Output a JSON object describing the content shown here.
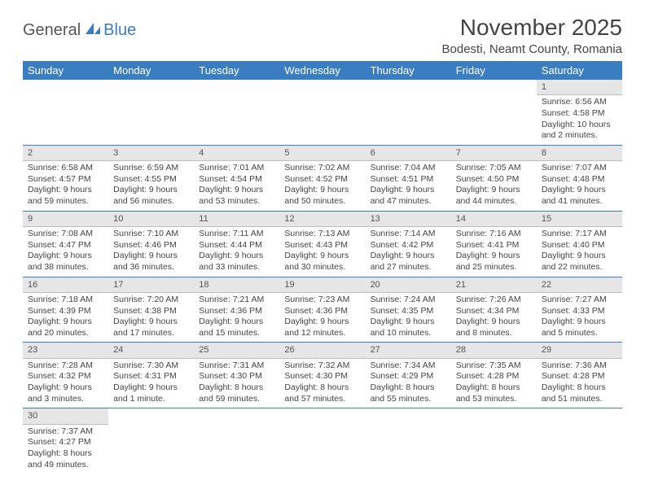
{
  "logo": {
    "part1": "General",
    "part2": "Blue"
  },
  "title": "November 2025",
  "location": "Bodesti, Neamt County, Romania",
  "colors": {
    "header_bg": "#3a7ec1",
    "header_text": "#ffffff",
    "daynum_bg": "#e6e6e6",
    "row_divider": "#3a7ec1",
    "text": "#444444"
  },
  "day_headers": [
    "Sunday",
    "Monday",
    "Tuesday",
    "Wednesday",
    "Thursday",
    "Friday",
    "Saturday"
  ],
  "weeks": [
    [
      {
        "n": "",
        "sr": "",
        "ss": "",
        "dl": ""
      },
      {
        "n": "",
        "sr": "",
        "ss": "",
        "dl": ""
      },
      {
        "n": "",
        "sr": "",
        "ss": "",
        "dl": ""
      },
      {
        "n": "",
        "sr": "",
        "ss": "",
        "dl": ""
      },
      {
        "n": "",
        "sr": "",
        "ss": "",
        "dl": ""
      },
      {
        "n": "",
        "sr": "",
        "ss": "",
        "dl": ""
      },
      {
        "n": "1",
        "sr": "Sunrise: 6:56 AM",
        "ss": "Sunset: 4:58 PM",
        "dl": "Daylight: 10 hours and 2 minutes."
      }
    ],
    [
      {
        "n": "2",
        "sr": "Sunrise: 6:58 AM",
        "ss": "Sunset: 4:57 PM",
        "dl": "Daylight: 9 hours and 59 minutes."
      },
      {
        "n": "3",
        "sr": "Sunrise: 6:59 AM",
        "ss": "Sunset: 4:55 PM",
        "dl": "Daylight: 9 hours and 56 minutes."
      },
      {
        "n": "4",
        "sr": "Sunrise: 7:01 AM",
        "ss": "Sunset: 4:54 PM",
        "dl": "Daylight: 9 hours and 53 minutes."
      },
      {
        "n": "5",
        "sr": "Sunrise: 7:02 AM",
        "ss": "Sunset: 4:52 PM",
        "dl": "Daylight: 9 hours and 50 minutes."
      },
      {
        "n": "6",
        "sr": "Sunrise: 7:04 AM",
        "ss": "Sunset: 4:51 PM",
        "dl": "Daylight: 9 hours and 47 minutes."
      },
      {
        "n": "7",
        "sr": "Sunrise: 7:05 AM",
        "ss": "Sunset: 4:50 PM",
        "dl": "Daylight: 9 hours and 44 minutes."
      },
      {
        "n": "8",
        "sr": "Sunrise: 7:07 AM",
        "ss": "Sunset: 4:48 PM",
        "dl": "Daylight: 9 hours and 41 minutes."
      }
    ],
    [
      {
        "n": "9",
        "sr": "Sunrise: 7:08 AM",
        "ss": "Sunset: 4:47 PM",
        "dl": "Daylight: 9 hours and 38 minutes."
      },
      {
        "n": "10",
        "sr": "Sunrise: 7:10 AM",
        "ss": "Sunset: 4:46 PM",
        "dl": "Daylight: 9 hours and 36 minutes."
      },
      {
        "n": "11",
        "sr": "Sunrise: 7:11 AM",
        "ss": "Sunset: 4:44 PM",
        "dl": "Daylight: 9 hours and 33 minutes."
      },
      {
        "n": "12",
        "sr": "Sunrise: 7:13 AM",
        "ss": "Sunset: 4:43 PM",
        "dl": "Daylight: 9 hours and 30 minutes."
      },
      {
        "n": "13",
        "sr": "Sunrise: 7:14 AM",
        "ss": "Sunset: 4:42 PM",
        "dl": "Daylight: 9 hours and 27 minutes."
      },
      {
        "n": "14",
        "sr": "Sunrise: 7:16 AM",
        "ss": "Sunset: 4:41 PM",
        "dl": "Daylight: 9 hours and 25 minutes."
      },
      {
        "n": "15",
        "sr": "Sunrise: 7:17 AM",
        "ss": "Sunset: 4:40 PM",
        "dl": "Daylight: 9 hours and 22 minutes."
      }
    ],
    [
      {
        "n": "16",
        "sr": "Sunrise: 7:18 AM",
        "ss": "Sunset: 4:39 PM",
        "dl": "Daylight: 9 hours and 20 minutes."
      },
      {
        "n": "17",
        "sr": "Sunrise: 7:20 AM",
        "ss": "Sunset: 4:38 PM",
        "dl": "Daylight: 9 hours and 17 minutes."
      },
      {
        "n": "18",
        "sr": "Sunrise: 7:21 AM",
        "ss": "Sunset: 4:36 PM",
        "dl": "Daylight: 9 hours and 15 minutes."
      },
      {
        "n": "19",
        "sr": "Sunrise: 7:23 AM",
        "ss": "Sunset: 4:36 PM",
        "dl": "Daylight: 9 hours and 12 minutes."
      },
      {
        "n": "20",
        "sr": "Sunrise: 7:24 AM",
        "ss": "Sunset: 4:35 PM",
        "dl": "Daylight: 9 hours and 10 minutes."
      },
      {
        "n": "21",
        "sr": "Sunrise: 7:26 AM",
        "ss": "Sunset: 4:34 PM",
        "dl": "Daylight: 9 hours and 8 minutes."
      },
      {
        "n": "22",
        "sr": "Sunrise: 7:27 AM",
        "ss": "Sunset: 4:33 PM",
        "dl": "Daylight: 9 hours and 5 minutes."
      }
    ],
    [
      {
        "n": "23",
        "sr": "Sunrise: 7:28 AM",
        "ss": "Sunset: 4:32 PM",
        "dl": "Daylight: 9 hours and 3 minutes."
      },
      {
        "n": "24",
        "sr": "Sunrise: 7:30 AM",
        "ss": "Sunset: 4:31 PM",
        "dl": "Daylight: 9 hours and 1 minute."
      },
      {
        "n": "25",
        "sr": "Sunrise: 7:31 AM",
        "ss": "Sunset: 4:30 PM",
        "dl": "Daylight: 8 hours and 59 minutes."
      },
      {
        "n": "26",
        "sr": "Sunrise: 7:32 AM",
        "ss": "Sunset: 4:30 PM",
        "dl": "Daylight: 8 hours and 57 minutes."
      },
      {
        "n": "27",
        "sr": "Sunrise: 7:34 AM",
        "ss": "Sunset: 4:29 PM",
        "dl": "Daylight: 8 hours and 55 minutes."
      },
      {
        "n": "28",
        "sr": "Sunrise: 7:35 AM",
        "ss": "Sunset: 4:28 PM",
        "dl": "Daylight: 8 hours and 53 minutes."
      },
      {
        "n": "29",
        "sr": "Sunrise: 7:36 AM",
        "ss": "Sunset: 4:28 PM",
        "dl": "Daylight: 8 hours and 51 minutes."
      }
    ],
    [
      {
        "n": "30",
        "sr": "Sunrise: 7:37 AM",
        "ss": "Sunset: 4:27 PM",
        "dl": "Daylight: 8 hours and 49 minutes."
      },
      {
        "n": "",
        "sr": "",
        "ss": "",
        "dl": ""
      },
      {
        "n": "",
        "sr": "",
        "ss": "",
        "dl": ""
      },
      {
        "n": "",
        "sr": "",
        "ss": "",
        "dl": ""
      },
      {
        "n": "",
        "sr": "",
        "ss": "",
        "dl": ""
      },
      {
        "n": "",
        "sr": "",
        "ss": "",
        "dl": ""
      },
      {
        "n": "",
        "sr": "",
        "ss": "",
        "dl": ""
      }
    ]
  ]
}
